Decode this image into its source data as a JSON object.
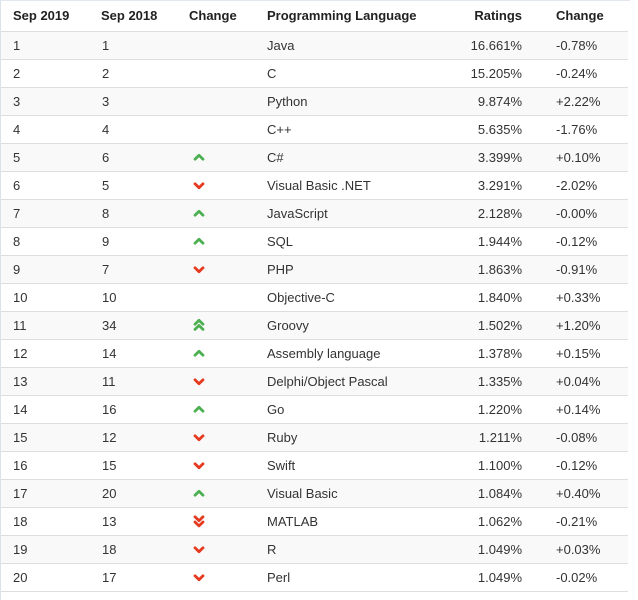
{
  "colors": {
    "arrow_up": "#4caf50",
    "arrow_down": "#e53a1f",
    "row_stripe": "#f9f9f9",
    "row_border": "#dddddd",
    "header_text": "#222222",
    "cell_text": "#333333"
  },
  "table": {
    "columns": [
      {
        "key": "rank2019",
        "label": "Sep 2019"
      },
      {
        "key": "rank2018",
        "label": "Sep 2018"
      },
      {
        "key": "change_arrow",
        "label": "Change"
      },
      {
        "key": "language",
        "label": "Programming Language"
      },
      {
        "key": "rating",
        "label": "Ratings"
      },
      {
        "key": "change",
        "label": "Change"
      }
    ],
    "rows": [
      {
        "rank2019": "1",
        "rank2018": "1",
        "direction": "none",
        "language": "Java",
        "rating": "16.661%",
        "change": "-0.78%"
      },
      {
        "rank2019": "2",
        "rank2018": "2",
        "direction": "none",
        "language": "C",
        "rating": "15.205%",
        "change": "-0.24%"
      },
      {
        "rank2019": "3",
        "rank2018": "3",
        "direction": "none",
        "language": "Python",
        "rating": "9.874%",
        "change": "+2.22%"
      },
      {
        "rank2019": "4",
        "rank2018": "4",
        "direction": "none",
        "language": "C++",
        "rating": "5.635%",
        "change": "-1.76%"
      },
      {
        "rank2019": "5",
        "rank2018": "6",
        "direction": "up",
        "language": "C#",
        "rating": "3.399%",
        "change": "+0.10%"
      },
      {
        "rank2019": "6",
        "rank2018": "5",
        "direction": "down",
        "language": "Visual Basic .NET",
        "rating": "3.291%",
        "change": "-2.02%"
      },
      {
        "rank2019": "7",
        "rank2018": "8",
        "direction": "up",
        "language": "JavaScript",
        "rating": "2.128%",
        "change": "-0.00%"
      },
      {
        "rank2019": "8",
        "rank2018": "9",
        "direction": "up",
        "language": "SQL",
        "rating": "1.944%",
        "change": "-0.12%"
      },
      {
        "rank2019": "9",
        "rank2018": "7",
        "direction": "down",
        "language": "PHP",
        "rating": "1.863%",
        "change": "-0.91%"
      },
      {
        "rank2019": "10",
        "rank2018": "10",
        "direction": "none",
        "language": "Objective-C",
        "rating": "1.840%",
        "change": "+0.33%"
      },
      {
        "rank2019": "11",
        "rank2018": "34",
        "direction": "double-up",
        "language": "Groovy",
        "rating": "1.502%",
        "change": "+1.20%"
      },
      {
        "rank2019": "12",
        "rank2018": "14",
        "direction": "up",
        "language": "Assembly language",
        "rating": "1.378%",
        "change": "+0.15%"
      },
      {
        "rank2019": "13",
        "rank2018": "11",
        "direction": "down",
        "language": "Delphi/Object Pascal",
        "rating": "1.335%",
        "change": "+0.04%"
      },
      {
        "rank2019": "14",
        "rank2018": "16",
        "direction": "up",
        "language": "Go",
        "rating": "1.220%",
        "change": "+0.14%"
      },
      {
        "rank2019": "15",
        "rank2018": "12",
        "direction": "down",
        "language": "Ruby",
        "rating": "1.211%",
        "change": "-0.08%"
      },
      {
        "rank2019": "16",
        "rank2018": "15",
        "direction": "down",
        "language": "Swift",
        "rating": "1.100%",
        "change": "-0.12%"
      },
      {
        "rank2019": "17",
        "rank2018": "20",
        "direction": "up",
        "language": "Visual Basic",
        "rating": "1.084%",
        "change": "+0.40%"
      },
      {
        "rank2019": "18",
        "rank2018": "13",
        "direction": "double-down",
        "language": "MATLAB",
        "rating": "1.062%",
        "change": "-0.21%"
      },
      {
        "rank2019": "19",
        "rank2018": "18",
        "direction": "down",
        "language": "R",
        "rating": "1.049%",
        "change": "+0.03%"
      },
      {
        "rank2019": "20",
        "rank2018": "17",
        "direction": "down",
        "language": "Perl",
        "rating": "1.049%",
        "change": "-0.02%"
      }
    ]
  }
}
